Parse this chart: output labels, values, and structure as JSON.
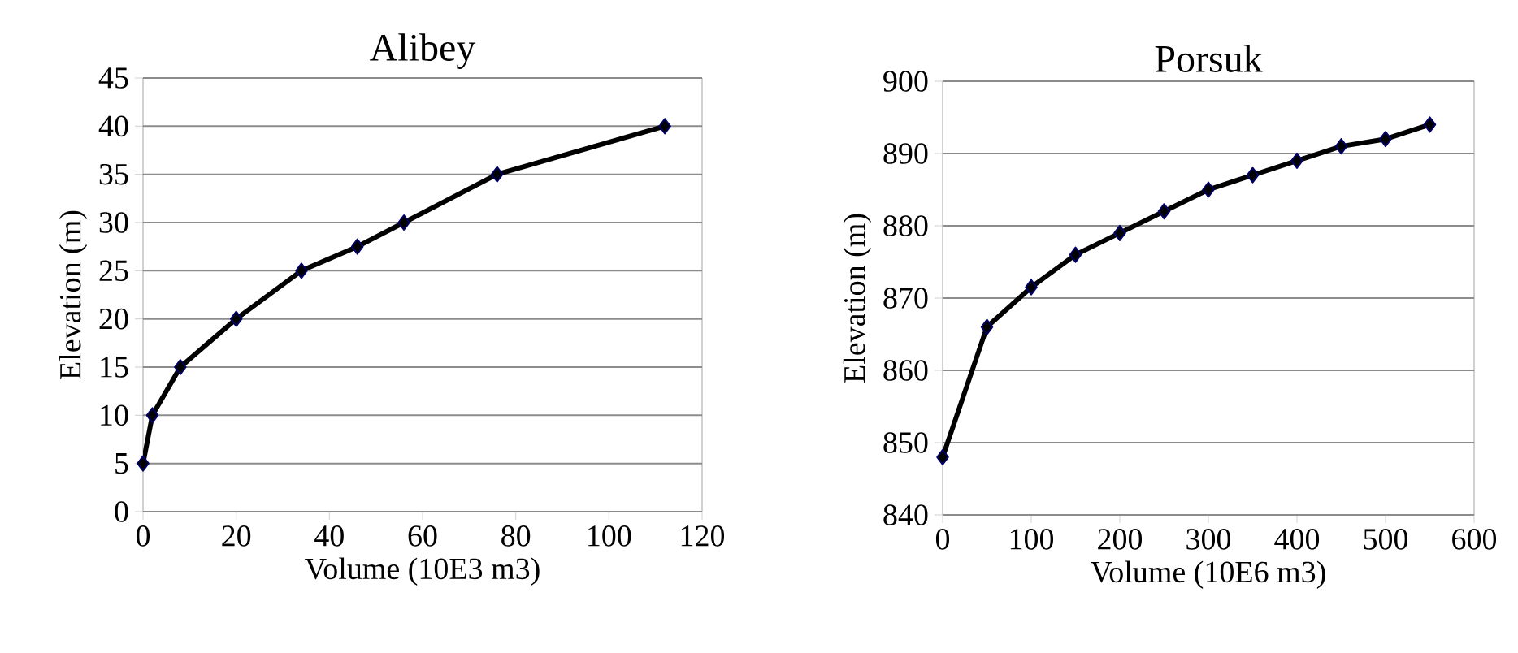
{
  "chart_data": [
    {
      "type": "line",
      "title": "Alibey",
      "xlabel": "Volume (10E3 m3)",
      "ylabel": "Elevation (m)",
      "x": [
        0,
        2,
        8,
        20,
        34,
        46,
        56,
        76,
        112
      ],
      "values": [
        5,
        10,
        15,
        20,
        25,
        27.5,
        30,
        35,
        40
      ],
      "color": "#000000",
      "marker": "diamond",
      "grid": "y",
      "xlim": [
        0,
        120
      ],
      "ylim": [
        0,
        45
      ],
      "xticks": [
        0,
        20,
        40,
        60,
        80,
        100,
        120
      ],
      "yticks": [
        0,
        5,
        10,
        15,
        20,
        25,
        30,
        35,
        40,
        45
      ]
    },
    {
      "type": "line",
      "title": "Porsuk",
      "xlabel": "Volume (10E6 m3)",
      "ylabel": "Elevation (m)",
      "x": [
        0,
        50,
        100,
        150,
        200,
        250,
        300,
        350,
        400,
        450,
        500,
        550
      ],
      "values": [
        848,
        866,
        871.5,
        876,
        879,
        882,
        885,
        887,
        889,
        891,
        892,
        894
      ],
      "color": "#000000",
      "marker": "diamond",
      "grid": "y",
      "xlim": [
        0,
        600
      ],
      "ylim": [
        840,
        900
      ],
      "xticks": [
        0,
        100,
        200,
        300,
        400,
        500,
        600
      ],
      "yticks": [
        840,
        850,
        860,
        870,
        880,
        890,
        900
      ]
    }
  ]
}
